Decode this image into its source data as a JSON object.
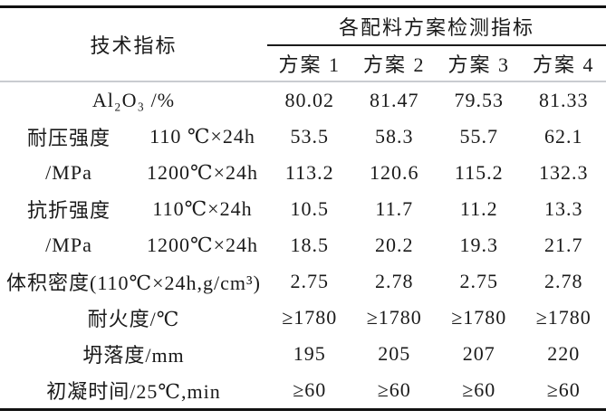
{
  "page": {
    "background": "#ffffff",
    "text_color": "#1a1a1a",
    "heavy_rule_color": "#111111",
    "thin_rule_color": "#1a1a1a",
    "light_rule_color": "#c9ccd0"
  },
  "table": {
    "left_header": "技术指标",
    "group_header": "各配料方案检测指标",
    "plan_columns": [
      "方案 1",
      "方案 2",
      "方案 3",
      "方案 4"
    ],
    "rows": [
      {
        "type": "span",
        "label": "Al₂O₃ /%",
        "values": [
          "80.02",
          "81.47",
          "79.53",
          "81.33"
        ]
      },
      {
        "type": "split",
        "cat": "耐压强度",
        "sub": "110 ℃×24h",
        "values": [
          "53.5",
          "58.3",
          "55.7",
          "62.1"
        ]
      },
      {
        "type": "split",
        "cat": "/MPa",
        "sub": "1200℃×24h",
        "values": [
          "113.2",
          "120.6",
          "115.2",
          "132.3"
        ]
      },
      {
        "type": "split",
        "cat": "抗折强度",
        "sub": "110℃×24h",
        "values": [
          "10.5",
          "11.7",
          "11.2",
          "13.3"
        ]
      },
      {
        "type": "split",
        "cat": "/MPa",
        "sub": "1200℃×24h",
        "values": [
          "18.5",
          "20.2",
          "19.3",
          "21.7"
        ]
      },
      {
        "type": "span",
        "label": "体积密度(110℃×24h,g/cm³)",
        "values": [
          "2.75",
          "2.78",
          "2.75",
          "2.78"
        ]
      },
      {
        "type": "span",
        "label": "耐火度/℃",
        "values": [
          "≥1780",
          "≥1780",
          "≥1780",
          "≥1780"
        ]
      },
      {
        "type": "span",
        "label": "坍落度/mm",
        "values": [
          "195",
          "205",
          "207",
          "220"
        ]
      },
      {
        "type": "span",
        "label": "初凝时间/25℃,min",
        "values": [
          "≥60",
          "≥60",
          "≥60",
          "≥60"
        ]
      }
    ]
  }
}
